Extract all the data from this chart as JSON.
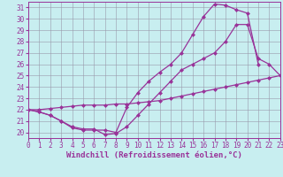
{
  "background_color": "#c8eef0",
  "line_color": "#993399",
  "grid_color": "#9999aa",
  "xlabel": "Windchill (Refroidissement éolien,°C)",
  "xlim": [
    0,
    23
  ],
  "ylim": [
    19.5,
    31.5
  ],
  "yticks": [
    20,
    21,
    22,
    23,
    24,
    25,
    26,
    27,
    28,
    29,
    30,
    31
  ],
  "xticks": [
    0,
    1,
    2,
    3,
    4,
    5,
    6,
    7,
    8,
    9,
    10,
    11,
    12,
    13,
    14,
    15,
    16,
    17,
    18,
    19,
    20,
    21,
    22,
    23
  ],
  "line1_x": [
    0,
    1,
    2,
    3,
    4,
    5,
    6,
    7,
    8,
    9,
    10,
    11,
    12,
    13,
    14,
    15,
    16,
    17,
    18,
    19,
    20,
    21,
    22,
    23
  ],
  "line1_y": [
    22.0,
    21.8,
    21.5,
    21.0,
    20.4,
    20.2,
    20.2,
    20.2,
    20.0,
    22.2,
    23.5,
    24.5,
    25.3,
    26.0,
    27.0,
    28.6,
    30.2,
    31.3,
    31.2,
    30.8,
    30.5,
    26.0,
    null,
    null
  ],
  "line2_x": [
    0,
    1,
    2,
    3,
    4,
    5,
    6,
    7,
    8,
    9,
    10,
    11,
    12,
    13,
    14,
    15,
    16,
    17,
    18,
    19,
    20,
    21,
    22,
    23
  ],
  "line2_y": [
    22.0,
    21.8,
    21.5,
    21.0,
    20.5,
    20.3,
    20.3,
    19.8,
    19.9,
    20.5,
    21.5,
    22.5,
    23.5,
    24.5,
    25.5,
    26.0,
    26.5,
    27.0,
    28.0,
    29.5,
    29.5,
    26.5,
    26.0,
    25.0
  ],
  "line3_x": [
    0,
    1,
    2,
    3,
    4,
    5,
    6,
    7,
    8,
    9,
    10,
    11,
    12,
    13,
    14,
    15,
    16,
    17,
    18,
    19,
    20,
    21,
    22,
    23
  ],
  "line3_y": [
    22.0,
    22.0,
    22.1,
    22.2,
    22.3,
    22.4,
    22.4,
    22.4,
    22.5,
    22.5,
    22.6,
    22.7,
    22.8,
    23.0,
    23.2,
    23.4,
    23.6,
    23.8,
    24.0,
    24.2,
    24.4,
    24.6,
    24.8,
    25.0
  ],
  "marker": "D",
  "marker_size": 2.0,
  "linewidth": 0.9,
  "tick_fontsize": 5.5,
  "xlabel_fontsize": 6.5
}
